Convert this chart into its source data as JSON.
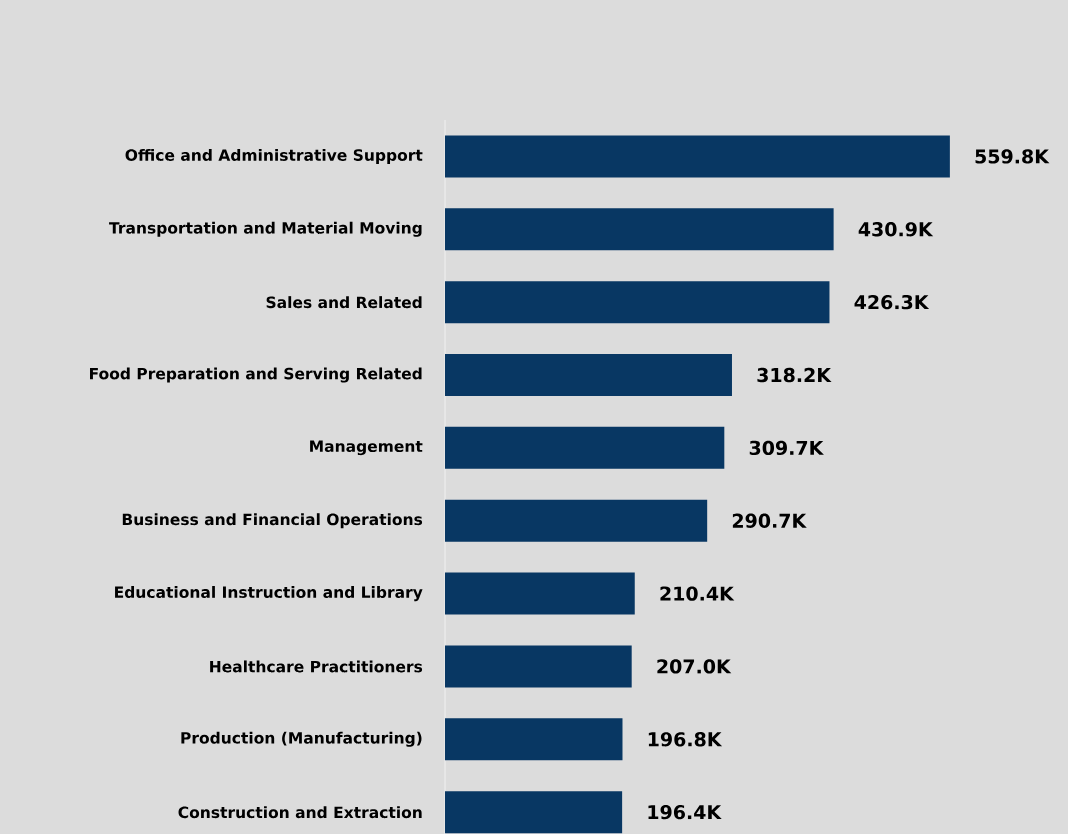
{
  "chart_data": {
    "type": "bar",
    "orientation": "horizontal",
    "categories": [
      "Office and Administrative Support",
      "Transportation and Material Moving",
      "Sales and Related",
      "Food Preparation and Serving Related",
      "Management",
      "Business and Financial Operations",
      "Educational Instruction and Library",
      "Healthcare Practitioners",
      "Production (Manufacturing)",
      "Construction and Extraction"
    ],
    "values": [
      559.8,
      430.9,
      426.3,
      318.2,
      309.7,
      290.7,
      210.4,
      207.0,
      196.8,
      196.4
    ],
    "value_labels": [
      "559.8K",
      "430.9K",
      "426.3K",
      "318.2K",
      "309.7K",
      "290.7K",
      "210.4K",
      "207.0K",
      "196.8K",
      "196.4K"
    ],
    "color": "#083763"
  }
}
